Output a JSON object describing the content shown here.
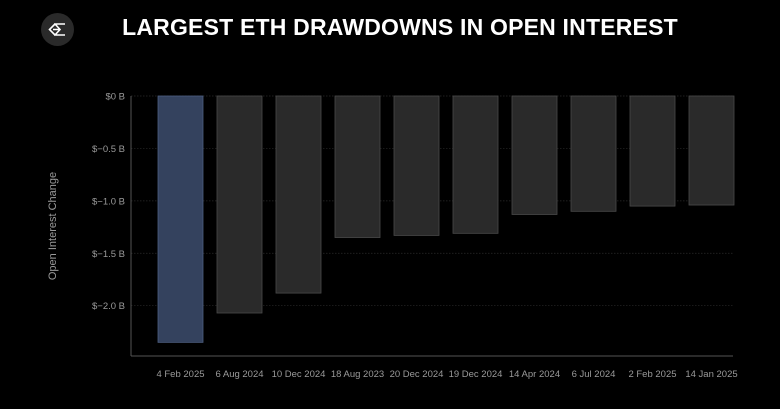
{
  "header": {
    "title": "LARGEST ETH DRAWDOWNS IN OPEN INTEREST",
    "logo_icon": "sigma-diamond-logo"
  },
  "chart_data": {
    "type": "bar",
    "title": "LARGEST ETH DRAWDOWNS IN OPEN INTEREST",
    "xlabel": "",
    "ylabel": "Open Interest Change",
    "unit": "B USD",
    "categories": [
      "4 Feb 2025",
      "6 Aug 2024",
      "10 Dec 2024",
      "18 Aug 2023",
      "20 Dec 2024",
      "19 Dec 2024",
      "14 Apr 2024",
      "6 Jul 2024",
      "2 Feb 2025",
      "14 Jan 2025"
    ],
    "values": [
      -2.35,
      -2.07,
      -1.88,
      -1.35,
      -1.33,
      -1.31,
      -1.13,
      -1.1,
      -1.05,
      -1.04
    ],
    "ylim": [
      -2.48,
      0
    ],
    "yticks": [
      0,
      -0.5,
      -1.0,
      -1.5,
      -2.0
    ],
    "ytick_labels": [
      "$0 B",
      "$−0.5 B",
      "$−1.0 B",
      "$−1.5 B",
      "$−2.0 B"
    ],
    "grid": true,
    "colors": {
      "highlight": "#34425e",
      "highlight_border": "#4d5e80",
      "bar": "#2a2a2a",
      "bar_border": "#4a4a4a",
      "background": "#000000"
    }
  }
}
